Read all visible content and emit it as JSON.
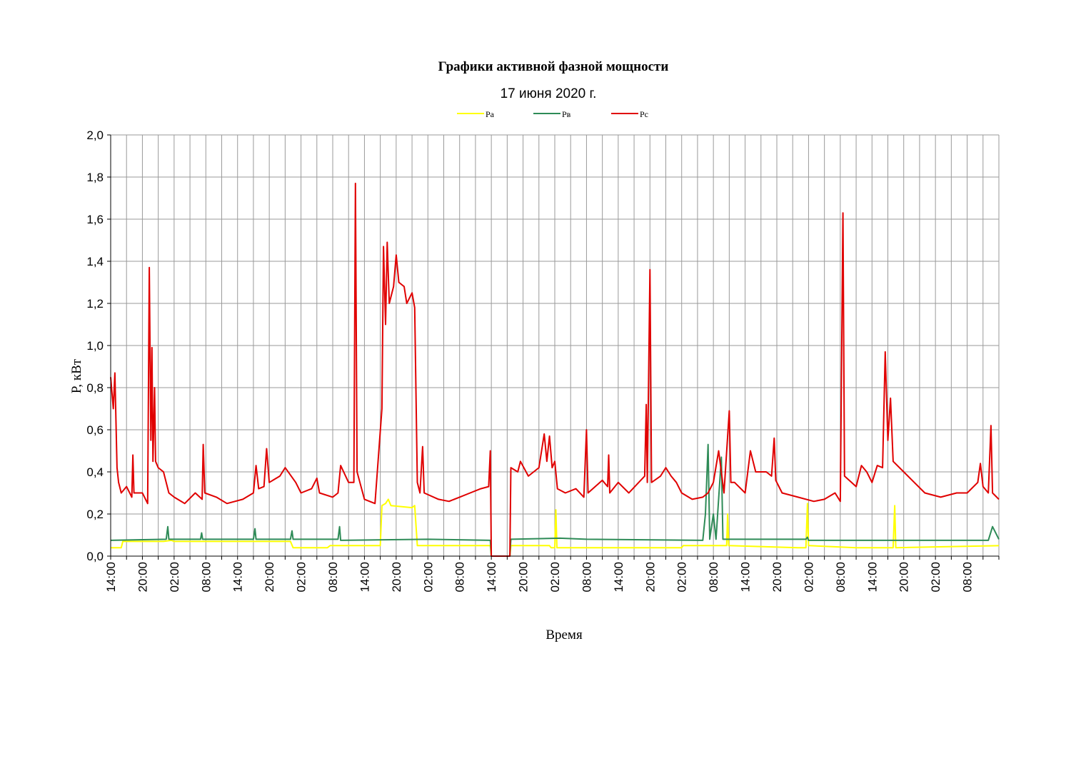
{
  "chart_data": {
    "type": "line",
    "title": "Графики активной фазной мощности",
    "subtitle": "17 июня 2020 г.",
    "xlabel": "Время",
    "ylabel": "P, кВт",
    "ylim": [
      0,
      2
    ],
    "y_ticks": [
      "0,0",
      "0,2",
      "0,4",
      "0,6",
      "0,8",
      "1,0",
      "1,2",
      "1,4",
      "1,6",
      "1,8",
      "2,0"
    ],
    "grid": true,
    "legend_position": "top",
    "x_range_hours": [
      0,
      168
    ],
    "x_ticks": [
      {
        "t": 0,
        "label": "14:00"
      },
      {
        "t": 6,
        "label": "20:00"
      },
      {
        "t": 12,
        "label": "02:00"
      },
      {
        "t": 18,
        "label": "08:00"
      },
      {
        "t": 24,
        "label": "14:00"
      },
      {
        "t": 30,
        "label": "20:00"
      },
      {
        "t": 36,
        "label": "02:00"
      },
      {
        "t": 42,
        "label": "08:00"
      },
      {
        "t": 48,
        "label": "14:00"
      },
      {
        "t": 54,
        "label": "20:00"
      },
      {
        "t": 60,
        "label": "02:00"
      },
      {
        "t": 66,
        "label": "08:00"
      },
      {
        "t": 72,
        "label": "14:00"
      },
      {
        "t": 78,
        "label": "20:00"
      },
      {
        "t": 84,
        "label": "02:00"
      },
      {
        "t": 90,
        "label": "08:00"
      },
      {
        "t": 96,
        "label": "14:00"
      },
      {
        "t": 102,
        "label": "20:00"
      },
      {
        "t": 108,
        "label": "02:00"
      },
      {
        "t": 114,
        "label": "08:00"
      },
      {
        "t": 120,
        "label": "14:00"
      },
      {
        "t": 126,
        "label": "20:00"
      },
      {
        "t": 132,
        "label": "02:00"
      },
      {
        "t": 138,
        "label": "08:00"
      },
      {
        "t": 144,
        "label": "14:00"
      },
      {
        "t": 150,
        "label": "20:00"
      },
      {
        "t": 156,
        "label": "02:00"
      },
      {
        "t": 162,
        "label": "08:00"
      }
    ],
    "series": [
      {
        "name": "Pa",
        "color": "#ffff00",
        "points": [
          [
            0,
            0.04
          ],
          [
            2,
            0.04
          ],
          [
            2.3,
            0.07
          ],
          [
            10,
            0.07
          ],
          [
            11.5,
            0.075
          ],
          [
            12,
            0.07
          ],
          [
            30,
            0.07
          ],
          [
            34,
            0.07
          ],
          [
            34.5,
            0.04
          ],
          [
            41,
            0.04
          ],
          [
            41.5,
            0.05
          ],
          [
            51,
            0.05
          ],
          [
            51.3,
            0.24
          ],
          [
            52,
            0.25
          ],
          [
            52.5,
            0.27
          ],
          [
            53,
            0.24
          ],
          [
            57,
            0.23
          ],
          [
            57.5,
            0.24
          ],
          [
            58,
            0.05
          ],
          [
            71.8,
            0.05
          ],
          [
            72,
            0.0
          ],
          [
            75.5,
            0.0
          ],
          [
            75.7,
            0.05
          ],
          [
            83,
            0.05
          ],
          [
            83.3,
            0.04
          ],
          [
            84,
            0.04
          ],
          [
            84.2,
            0.22
          ],
          [
            84.4,
            0.04
          ],
          [
            100,
            0.04
          ],
          [
            108,
            0.04
          ],
          [
            108.3,
            0.05
          ],
          [
            114,
            0.05
          ],
          [
            115,
            0.05
          ],
          [
            116.5,
            0.05
          ],
          [
            116.7,
            0.2
          ],
          [
            116.9,
            0.05
          ],
          [
            130,
            0.04
          ],
          [
            131.5,
            0.04
          ],
          [
            131.8,
            0.25
          ],
          [
            132,
            0.05
          ],
          [
            141,
            0.04
          ],
          [
            148,
            0.04
          ],
          [
            148.3,
            0.24
          ],
          [
            148.5,
            0.04
          ],
          [
            168,
            0.05
          ]
        ]
      },
      {
        "name": "Pв",
        "color": "#2e8b57",
        "points": [
          [
            0,
            0.075
          ],
          [
            10.5,
            0.08
          ],
          [
            10.8,
            0.14
          ],
          [
            11,
            0.08
          ],
          [
            17,
            0.08
          ],
          [
            17.2,
            0.11
          ],
          [
            17.4,
            0.08
          ],
          [
            27,
            0.08
          ],
          [
            27.3,
            0.13
          ],
          [
            27.5,
            0.08
          ],
          [
            34,
            0.08
          ],
          [
            34.3,
            0.12
          ],
          [
            34.5,
            0.08
          ],
          [
            43,
            0.08
          ],
          [
            43.3,
            0.14
          ],
          [
            43.5,
            0.075
          ],
          [
            60,
            0.08
          ],
          [
            71.8,
            0.075
          ],
          [
            72,
            0.0
          ],
          [
            75.5,
            0.0
          ],
          [
            75.7,
            0.08
          ],
          [
            85,
            0.085
          ],
          [
            90,
            0.08
          ],
          [
            112,
            0.075
          ],
          [
            112.5,
            0.2
          ],
          [
            113,
            0.53
          ],
          [
            113.3,
            0.08
          ],
          [
            114,
            0.2
          ],
          [
            114.5,
            0.08
          ],
          [
            115.5,
            0.47
          ],
          [
            115.8,
            0.08
          ],
          [
            131.5,
            0.08
          ],
          [
            131.8,
            0.09
          ],
          [
            132,
            0.075
          ],
          [
            166,
            0.075
          ],
          [
            166.8,
            0.14
          ],
          [
            168,
            0.08
          ]
        ]
      },
      {
        "name": "Pc",
        "color": "#e00000",
        "points": [
          [
            0,
            0.85
          ],
          [
            0.5,
            0.7
          ],
          [
            0.8,
            0.87
          ],
          [
            1.2,
            0.42
          ],
          [
            1.5,
            0.35
          ],
          [
            2,
            0.3
          ],
          [
            3,
            0.33
          ],
          [
            4,
            0.28
          ],
          [
            4.2,
            0.48
          ],
          [
            4.4,
            0.3
          ],
          [
            6,
            0.3
          ],
          [
            7,
            0.25
          ],
          [
            7.3,
            1.37
          ],
          [
            7.6,
            0.55
          ],
          [
            7.8,
            0.99
          ],
          [
            8,
            0.45
          ],
          [
            8.3,
            0.8
          ],
          [
            8.5,
            0.45
          ],
          [
            9,
            0.42
          ],
          [
            10,
            0.4
          ],
          [
            11,
            0.3
          ],
          [
            12,
            0.28
          ],
          [
            14,
            0.25
          ],
          [
            16,
            0.3
          ],
          [
            17.3,
            0.27
          ],
          [
            17.5,
            0.53
          ],
          [
            17.8,
            0.3
          ],
          [
            20,
            0.28
          ],
          [
            22,
            0.25
          ],
          [
            25,
            0.27
          ],
          [
            27,
            0.3
          ],
          [
            27.5,
            0.43
          ],
          [
            28,
            0.32
          ],
          [
            29,
            0.33
          ],
          [
            29.5,
            0.51
          ],
          [
            30,
            0.35
          ],
          [
            32,
            0.38
          ],
          [
            33,
            0.42
          ],
          [
            35,
            0.35
          ],
          [
            36,
            0.3
          ],
          [
            38,
            0.32
          ],
          [
            39,
            0.37
          ],
          [
            39.5,
            0.3
          ],
          [
            42,
            0.28
          ],
          [
            43,
            0.3
          ],
          [
            43.5,
            0.43
          ],
          [
            45,
            0.35
          ],
          [
            46,
            0.35
          ],
          [
            46.3,
            1.77
          ],
          [
            46.6,
            0.4
          ],
          [
            48,
            0.27
          ],
          [
            50,
            0.25
          ],
          [
            51.3,
            0.7
          ],
          [
            51.6,
            1.47
          ],
          [
            52,
            1.1
          ],
          [
            52.3,
            1.49
          ],
          [
            52.7,
            1.2
          ],
          [
            53.5,
            1.28
          ],
          [
            54,
            1.43
          ],
          [
            54.5,
            1.3
          ],
          [
            55.5,
            1.28
          ],
          [
            56,
            1.2
          ],
          [
            57,
            1.25
          ],
          [
            57.5,
            1.18
          ],
          [
            58,
            0.35
          ],
          [
            58.5,
            0.3
          ],
          [
            59,
            0.52
          ],
          [
            59.3,
            0.3
          ],
          [
            62,
            0.27
          ],
          [
            64,
            0.26
          ],
          [
            66,
            0.28
          ],
          [
            68,
            0.3
          ],
          [
            70,
            0.32
          ],
          [
            71.5,
            0.33
          ],
          [
            71.8,
            0.5
          ],
          [
            72,
            0.0
          ],
          [
            75.5,
            0.0
          ],
          [
            75.7,
            0.42
          ],
          [
            77,
            0.4
          ],
          [
            77.5,
            0.45
          ],
          [
            79,
            0.38
          ],
          [
            81,
            0.42
          ],
          [
            82,
            0.58
          ],
          [
            82.5,
            0.45
          ],
          [
            83,
            0.57
          ],
          [
            83.5,
            0.42
          ],
          [
            84,
            0.45
          ],
          [
            84.5,
            0.32
          ],
          [
            86,
            0.3
          ],
          [
            88,
            0.32
          ],
          [
            89.5,
            0.28
          ],
          [
            90,
            0.6
          ],
          [
            90.3,
            0.3
          ],
          [
            93,
            0.36
          ],
          [
            94,
            0.33
          ],
          [
            94.2,
            0.48
          ],
          [
            94.4,
            0.3
          ],
          [
            96,
            0.35
          ],
          [
            98,
            0.3
          ],
          [
            101,
            0.38
          ],
          [
            101.3,
            0.72
          ],
          [
            101.5,
            0.35
          ],
          [
            102,
            1.36
          ],
          [
            102.3,
            0.35
          ],
          [
            104,
            0.38
          ],
          [
            105,
            0.42
          ],
          [
            106,
            0.38
          ],
          [
            107,
            0.35
          ],
          [
            108,
            0.3
          ],
          [
            110,
            0.27
          ],
          [
            112,
            0.28
          ],
          [
            113,
            0.3
          ],
          [
            114,
            0.35
          ],
          [
            115,
            0.5
          ],
          [
            116,
            0.3
          ],
          [
            117,
            0.69
          ],
          [
            117.3,
            0.35
          ],
          [
            118,
            0.35
          ],
          [
            120,
            0.3
          ],
          [
            121,
            0.5
          ],
          [
            121.5,
            0.45
          ],
          [
            122,
            0.4
          ],
          [
            124,
            0.4
          ],
          [
            125,
            0.38
          ],
          [
            125.5,
            0.56
          ],
          [
            125.8,
            0.36
          ],
          [
            127,
            0.3
          ],
          [
            130,
            0.28
          ],
          [
            133,
            0.26
          ],
          [
            135,
            0.27
          ],
          [
            137,
            0.3
          ],
          [
            138,
            0.26
          ],
          [
            138.5,
            1.63
          ],
          [
            138.8,
            0.38
          ],
          [
            141,
            0.33
          ],
          [
            142,
            0.43
          ],
          [
            143,
            0.4
          ],
          [
            144,
            0.35
          ],
          [
            145,
            0.43
          ],
          [
            146,
            0.42
          ],
          [
            146.5,
            0.97
          ],
          [
            147,
            0.55
          ],
          [
            147.5,
            0.75
          ],
          [
            148,
            0.45
          ],
          [
            150,
            0.4
          ],
          [
            152,
            0.35
          ],
          [
            154,
            0.3
          ],
          [
            157,
            0.28
          ],
          [
            160,
            0.3
          ],
          [
            162,
            0.3
          ],
          [
            164,
            0.35
          ],
          [
            164.5,
            0.44
          ],
          [
            165,
            0.33
          ],
          [
            166,
            0.3
          ],
          [
            166.5,
            0.62
          ],
          [
            166.8,
            0.3
          ],
          [
            168,
            0.27
          ]
        ]
      }
    ]
  }
}
